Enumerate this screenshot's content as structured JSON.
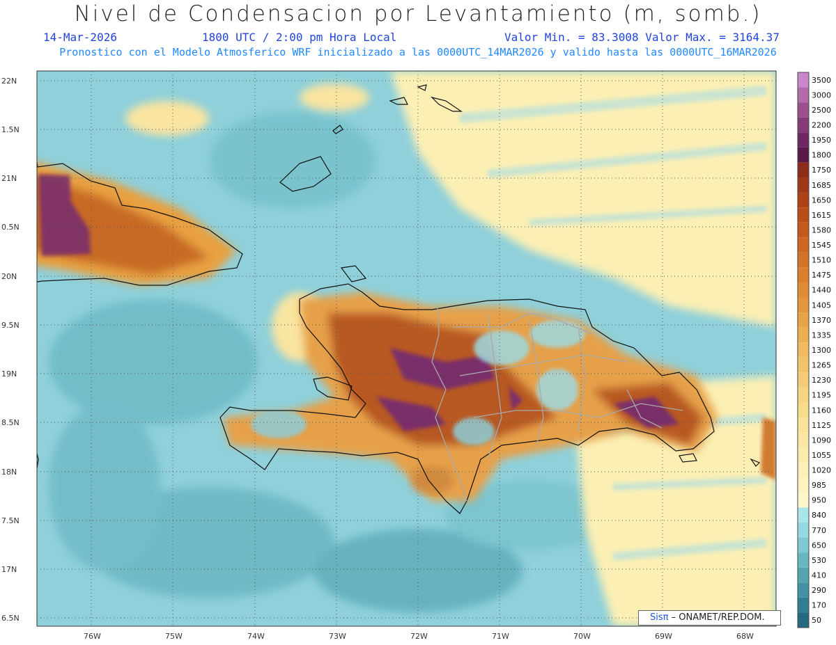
{
  "header": {
    "title": "Nivel de Condensacion por Levantamiento (m, somb.)",
    "date": "14-Mar-2026",
    "time": "1800 UTC / 2:00 pm Hora Local",
    "min_max": "Valor Min. = 83.3008  Valor Max. = 3164.37",
    "model_info": "Pronostico con el Modelo Atmosferico WRF inicializado a las 0000UTC_14MAR2026 y valido hasta las  0000UTC_16MAR2026"
  },
  "axes": {
    "lat_labels": [
      "22N",
      "1.5N",
      "21N",
      "0.5N",
      "20N",
      "9.5N",
      "19N",
      "8.5N",
      "18N",
      "7.5N",
      "17N",
      "6.5N"
    ],
    "lon_labels": [
      "76W",
      "75W",
      "74W",
      "73W",
      "72W",
      "71W",
      "70W",
      "69W",
      "68W"
    ]
  },
  "colorbar": {
    "levels": [
      "3500",
      "3000",
      "2500",
      "2200",
      "1950",
      "1800",
      "1750",
      "1685",
      "1650",
      "1615",
      "1580",
      "1545",
      "1510",
      "1475",
      "1440",
      "1405",
      "1370",
      "1335",
      "1300",
      "1265",
      "1230",
      "1195",
      "1160",
      "1125",
      "1090",
      "1055",
      "1020",
      "985",
      "950",
      "840",
      "770",
      "650",
      "530",
      "410",
      "290",
      "170",
      "50"
    ],
    "colors": [
      "#c887c8",
      "#b26aaa",
      "#9a4f8e",
      "#843a78",
      "#6e2762",
      "#5a1a48",
      "#8e2c1a",
      "#9e3618",
      "#ac4216",
      "#b84e18",
      "#c35a1c",
      "#cc6620",
      "#d47226",
      "#db7e2e",
      "#e08a36",
      "#e4963e",
      "#e8a248",
      "#ecae52",
      "#f0ba5e",
      "#f2c46a",
      "#f4cc76",
      "#f6d482",
      "#f8dc8e",
      "#f9e29a",
      "#fae8a4",
      "#fbecae",
      "#fcf0b8",
      "#fdf2c0",
      "#fef6c8",
      "#a8e6ec",
      "#94d8e0",
      "#7ec8d2",
      "#68b6c2",
      "#54a4b2",
      "#4292a2",
      "#327e90",
      "#246a7e"
    ]
  },
  "credit": {
    "brand": "Sisπ",
    "org": "– ONAMET/REP.DOM."
  }
}
